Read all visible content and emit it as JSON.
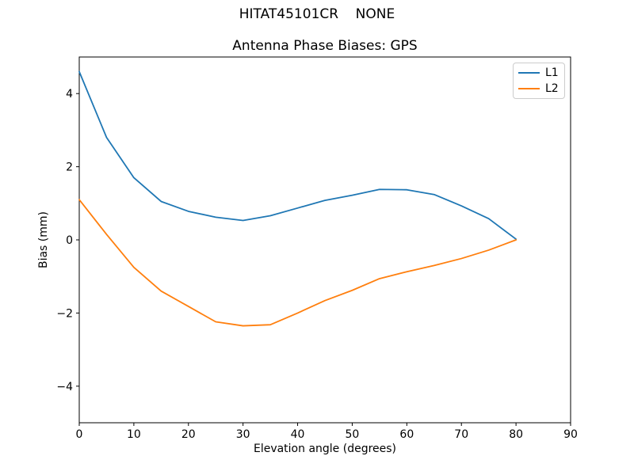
{
  "figure": {
    "background": "#ffffff",
    "suptitle": "HITAT45101CR    NONE"
  },
  "axes_style": {
    "spine_color": "#000000",
    "tick_color": "#000000",
    "legend_border_color": "#cccccc"
  },
  "chart_data": {
    "type": "line",
    "title": "Antenna Phase Biases: GPS",
    "xlabel": "Elevation angle (degrees)",
    "ylabel": "Bias (mm)",
    "xlim": [
      0,
      90
    ],
    "ylim": [
      -5,
      5
    ],
    "xticks": [
      0,
      10,
      20,
      30,
      40,
      50,
      60,
      70,
      80,
      90
    ],
    "yticks": [
      -4,
      -2,
      0,
      2,
      4
    ],
    "grid": false,
    "legend_position": "upper right",
    "x": [
      0,
      5,
      10,
      15,
      20,
      25,
      30,
      35,
      40,
      45,
      50,
      55,
      60,
      65,
      70,
      75,
      80
    ],
    "series": [
      {
        "name": "L1",
        "color": "#1f77b4",
        "values": [
          4.6,
          2.8,
          1.7,
          1.05,
          0.78,
          0.62,
          0.53,
          0.66,
          0.87,
          1.08,
          1.22,
          1.38,
          1.37,
          1.24,
          0.93,
          0.58,
          0.02
        ]
      },
      {
        "name": "L2",
        "color": "#ff7f0e",
        "values": [
          1.1,
          0.15,
          -0.75,
          -1.4,
          -1.82,
          -2.24,
          -2.35,
          -2.32,
          -2.0,
          -1.66,
          -1.38,
          -1.06,
          -0.87,
          -0.7,
          -0.51,
          -0.28,
          0.0
        ]
      }
    ]
  }
}
